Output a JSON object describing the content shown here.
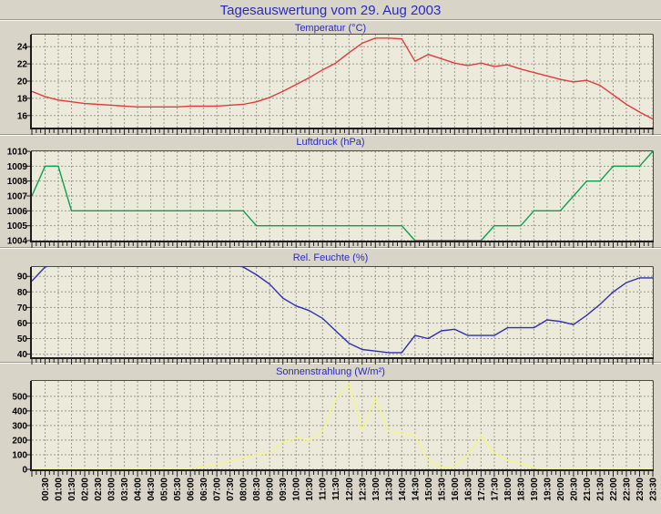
{
  "page": {
    "title": "Tagesauswertung vom 29. Aug 2003",
    "background": "#d8d4c8"
  },
  "styles": {
    "plot_bg": "#eceadb",
    "grid": "#9b9b8f",
    "axis": "#1c1c1c",
    "border": "#4a4a40",
    "title_color": "#2a2ac0",
    "label_color": "#000000"
  },
  "x_axis": {
    "start": "00:00",
    "end": "23:30",
    "step_minutes": 30,
    "n_points": 48,
    "tick_labels": [
      "00:30",
      "01:00",
      "01:30",
      "02:00",
      "02:30",
      "03:00",
      "03:30",
      "04:00",
      "04:30",
      "05:00",
      "05:30",
      "06:00",
      "06:30",
      "07:00",
      "07:30",
      "08:00",
      "08:30",
      "09:00",
      "09:30",
      "10:00",
      "10:30",
      "11:00",
      "11:30",
      "12:00",
      "12:30",
      "13:00",
      "13:30",
      "14:00",
      "14:30",
      "15:00",
      "15:30",
      "16:00",
      "16:30",
      "17:00",
      "17:30",
      "18:00",
      "18:30",
      "19:00",
      "19:30",
      "20:00",
      "20:30",
      "21:00",
      "21:30",
      "22:00",
      "22:30",
      "23:00",
      "23:30"
    ]
  },
  "chart_data": [
    {
      "type": "line",
      "title": "Temperatur (°C)",
      "unit": "°C",
      "color": "#e03c3c",
      "ylim": [
        14.6,
        25.4
      ],
      "yticks": [
        16,
        18,
        20,
        22,
        24
      ],
      "grid": true,
      "values": [
        18.8,
        18.2,
        17.8,
        17.6,
        17.4,
        17.3,
        17.2,
        17.1,
        17.0,
        17.0,
        17.0,
        17.0,
        17.1,
        17.1,
        17.1,
        17.2,
        17.3,
        17.6,
        18.1,
        18.8,
        19.6,
        20.4,
        21.3,
        22.1,
        23.3,
        24.4,
        25.0,
        25.0,
        24.9,
        22.3,
        23.1,
        22.6,
        22.1,
        21.8,
        22.1,
        21.7,
        21.9,
        21.4,
        21.0,
        20.6,
        20.2,
        19.9,
        20.1,
        19.5,
        18.4,
        17.3,
        16.4,
        15.6
      ]
    },
    {
      "type": "line",
      "title": "Luftdruck (hPa)",
      "unit": "hPa",
      "color": "#0aa14e",
      "ylim": [
        1004,
        1010
      ],
      "yticks": [
        1004,
        1005,
        1006,
        1007,
        1008,
        1009,
        1010
      ],
      "grid": true,
      "values": [
        1007,
        1009,
        1009,
        1006,
        1006,
        1006,
        1006,
        1006,
        1006,
        1006,
        1006,
        1006,
        1006,
        1006,
        1006,
        1006,
        1006,
        1005,
        1005,
        1005,
        1005,
        1005,
        1005,
        1005,
        1005,
        1005,
        1005,
        1005,
        1005,
        1004,
        1004,
        1004,
        1004,
        1004,
        1004,
        1005,
        1005,
        1005,
        1006,
        1006,
        1006,
        1007,
        1008,
        1008,
        1009,
        1009,
        1009,
        1010
      ]
    },
    {
      "type": "line",
      "title": "Rel. Feuchte (%)",
      "unit": "%",
      "color": "#2f2fb4",
      "ylim": [
        38,
        96
      ],
      "yticks": [
        40,
        50,
        60,
        70,
        80,
        90
      ],
      "grid": true,
      "values": [
        87,
        96,
        98,
        98,
        98,
        98,
        98,
        98,
        98,
        98,
        98,
        98,
        98,
        98,
        98,
        98,
        96,
        91,
        85,
        76,
        71,
        68,
        63,
        55,
        47,
        43,
        42,
        41,
        41,
        52,
        50,
        55,
        56,
        52,
        52,
        52,
        57,
        57,
        57,
        62,
        61,
        59,
        65,
        72,
        80,
        86,
        89,
        89
      ]
    },
    {
      "type": "line",
      "title": "Sonnenstrahlung (W/m²)",
      "unit": "W/m²",
      "color": "#f4f488",
      "ylim": [
        0,
        605
      ],
      "yticks": [
        0,
        100,
        200,
        300,
        400,
        500
      ],
      "grid": true,
      "values": [
        0,
        0,
        0,
        0,
        0,
        0,
        0,
        0,
        0,
        0,
        0,
        0,
        5,
        20,
        35,
        55,
        80,
        100,
        110,
        185,
        215,
        200,
        260,
        480,
        590,
        270,
        490,
        260,
        250,
        230,
        60,
        15,
        20,
        100,
        230,
        115,
        60,
        40,
        10,
        0,
        0,
        0,
        0,
        0,
        0,
        0,
        0,
        0
      ]
    }
  ]
}
